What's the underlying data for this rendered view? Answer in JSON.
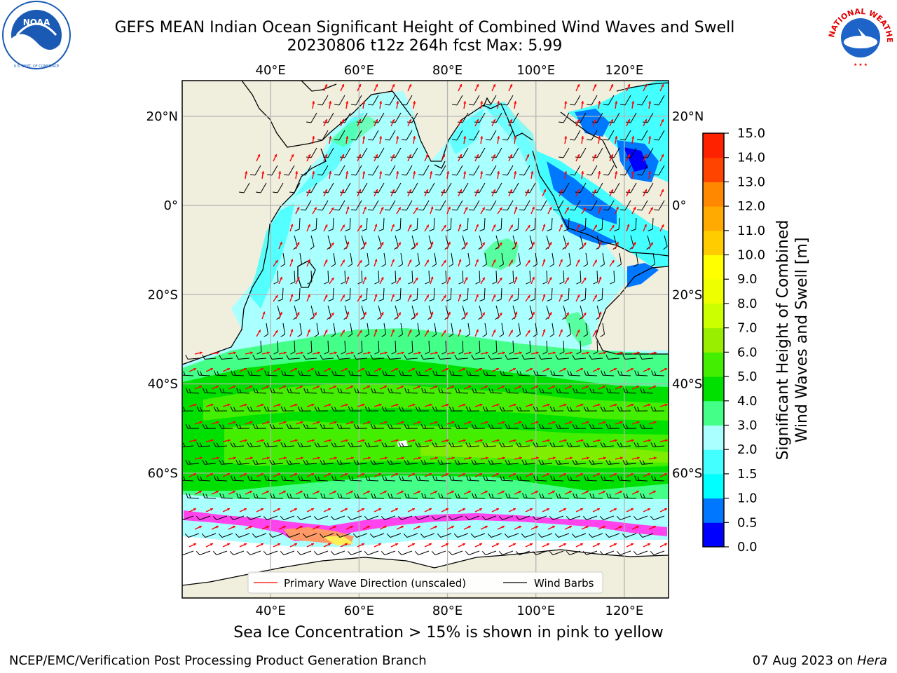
{
  "title": {
    "line1": "GEFS MEAN Indian Ocean Significant Height of Combined Wind Waves and Swell",
    "line2": "20230806 t12z 264h fcst   Max: 5.99"
  },
  "logos": {
    "left": {
      "name": "noaa-logo",
      "text": "NOAA",
      "ring_text": "NATIONAL OCEANIC AND ATMOSPHERIC ADMINISTRATION · U.S. DEPARTMENT OF COMMERCE",
      "color": "#1a5ab4"
    },
    "right": {
      "name": "nws-logo",
      "ring_text": "NATIONAL WEATHER SERVICE",
      "color": "#1e64c8",
      "ring_color": "#e00000"
    }
  },
  "map": {
    "region": "Indian Ocean",
    "projection": "equirectangular",
    "lon_range": [
      20,
      130
    ],
    "lat_range": [
      -88,
      28
    ],
    "lon_ticks": [
      {
        "value": 40,
        "label": "40°E"
      },
      {
        "value": 60,
        "label": "60°E"
      },
      {
        "value": 80,
        "label": "80°E"
      },
      {
        "value": 100,
        "label": "100°E"
      },
      {
        "value": 120,
        "label": "120°E"
      }
    ],
    "lat_ticks": [
      {
        "value": 20,
        "label": "20°N"
      },
      {
        "value": 0,
        "label": "0°"
      },
      {
        "value": -20,
        "label": "20°S"
      },
      {
        "value": -40,
        "label": "40°S"
      },
      {
        "value": -60,
        "label": "60°S"
      }
    ],
    "grid": true,
    "land_color": "#f0eedc",
    "sea_ice_colors": [
      "#ff44ee",
      "#ff9966",
      "#ffee55"
    ],
    "legend": {
      "placement": "lower-center",
      "entries": [
        {
          "label": "Primary Wave Direction (unscaled)",
          "color": "#ff0000"
        },
        {
          "label": "Wind Barbs",
          "color": "#000000"
        }
      ]
    }
  },
  "colorbar": {
    "label_line1": "Significant Height of Combined",
    "label_line2": "Wind Waves and Swell [m]",
    "ticks": [
      "0.0",
      "0.5",
      "1.0",
      "1.5",
      "2.0",
      "3.0",
      "4.0",
      "5.0",
      "6.0",
      "7.0",
      "8.0",
      "9.0",
      "10.0",
      "11.0",
      "12.0",
      "13.0",
      "14.0",
      "15.0"
    ],
    "colors": [
      "#0000ff",
      "#0077ff",
      "#00ffff",
      "#44ffff",
      "#aaffff",
      "#44ff88",
      "#00e000",
      "#44ee00",
      "#99ee00",
      "#ccff00",
      "#eeff00",
      "#ffff00",
      "#ffcc00",
      "#ffaa00",
      "#ff8800",
      "#ff4400",
      "#ff2200",
      "#ff0000"
    ]
  },
  "caption": "Sea Ice Concentration > 15% is shown in pink to yellow",
  "footer": {
    "left": "NCEP/EMC/Verification Post Processing Product Generation Branch",
    "date": "07 Aug 2023 on ",
    "host": "Hera"
  }
}
